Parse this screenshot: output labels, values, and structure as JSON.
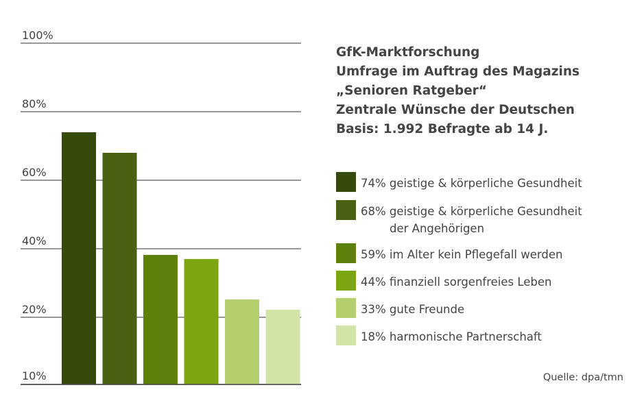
{
  "title_lines": [
    "GfK-Marktforschung",
    "Umfrage im Auftrag des Magazins",
    "„Senioren Ratgeber“",
    "Zentrale Wünsche der Deutschen",
    "Basis: 1.992 Befragte ab 14 J."
  ],
  "source": "Quelle: dpa/tmn",
  "legend": [
    {
      "line1": "74% geistige & körperliche Gesundheit",
      "line2": "",
      "color": "#364a0e"
    },
    {
      "line1": "68% geistige & körperliche Gesundheit",
      "line2": "der Angehörigen",
      "color": "#4a6114"
    },
    {
      "line1": "59% im Alter kein Pflegefall werden",
      "line2": "",
      "color": "#5e800d"
    },
    {
      "line1": "44% finanziell sorgenfreies Leben",
      "line2": "",
      "color": "#7ba60f"
    },
    {
      "line1": "33% gute Freunde",
      "line2": "",
      "color": "#b5cf6e"
    },
    {
      "line1": "18% harmonische Partnerschaft",
      "line2": "",
      "color": "#d3e4a8"
    }
  ],
  "chart_data": {
    "type": "bar",
    "title": "",
    "xlabel": "",
    "ylabel": "",
    "y_tick_labels": [
      "10%",
      "20%",
      "40%",
      "60%",
      "80%",
      "100%"
    ],
    "gridlines": true,
    "legend_position": "right",
    "categories": [
      "geistige & körperliche Gesundheit",
      "geistige & körperliche Gesundheit der Angehörigen",
      "im Alter kein Pflegefall werden",
      "finanziell sorgenfreies Leben",
      "gute Freunde",
      "harmonische Partnerschaft"
    ],
    "values": [
      74,
      68,
      59,
      44,
      33,
      18
    ],
    "colors": [
      "#364a0e",
      "#4a6114",
      "#5e800d",
      "#7ba60f",
      "#b5cf6e",
      "#d3e4a8"
    ]
  }
}
